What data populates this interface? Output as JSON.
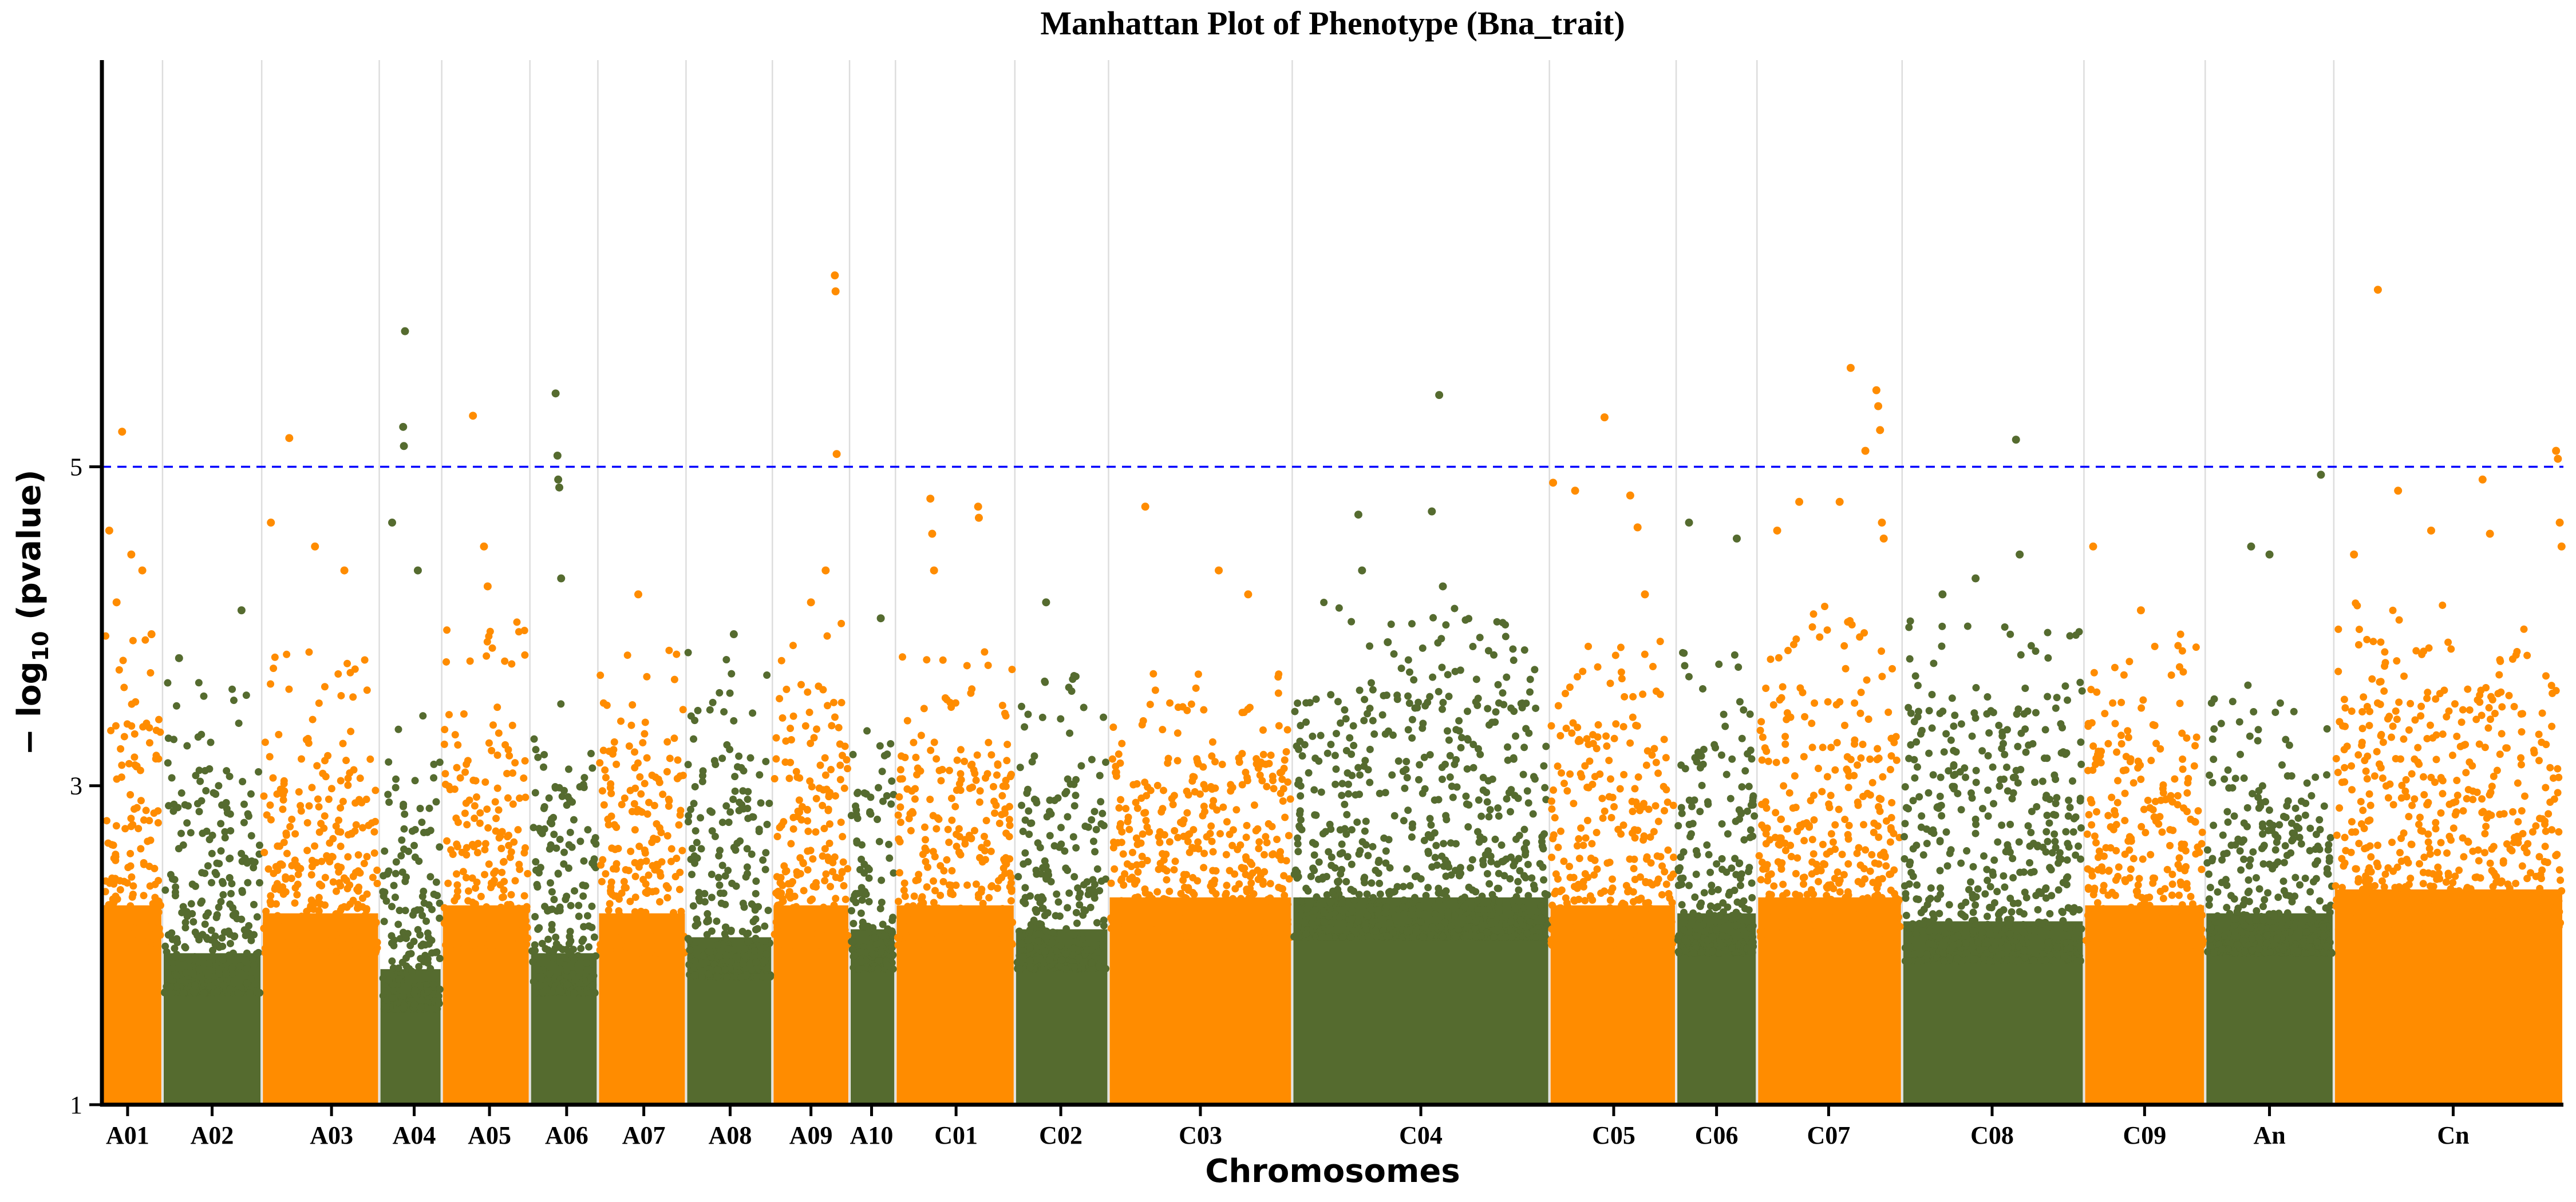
{
  "chart_data": {
    "type": "scatter",
    "subtype": "manhattan",
    "title": "Manhattan Plot of Phenotype (Bna_trait)",
    "xlabel": "Chromosomes",
    "ylabel": "− log",
    "ylabel_sub": "10",
    "ylabel_tail": " (pvalue)",
    "ylim": [
      1,
      7.55
    ],
    "yticks": [
      1,
      3,
      5
    ],
    "ytick_labels": [
      "1",
      "3",
      "5"
    ],
    "threshold": 5,
    "colors": {
      "orange": "#FF8C00",
      "green": "#556B2F",
      "threshold": "#0000FF",
      "grid": "#DDDDDD",
      "axis": "#000000"
    },
    "chromosomes": [
      {
        "name": "A01",
        "start": 0.0,
        "end": 1.65,
        "color": "orange",
        "label_at": 0.7
      },
      {
        "name": "A02",
        "start": 1.65,
        "end": 4.35,
        "color": "green",
        "label_at": 3.0
      },
      {
        "name": "A03",
        "start": 4.35,
        "end": 7.55,
        "color": "orange",
        "label_at": 6.25
      },
      {
        "name": "A04",
        "start": 7.55,
        "end": 9.25,
        "color": "green",
        "label_at": 8.5
      },
      {
        "name": "A05",
        "start": 9.25,
        "end": 11.65,
        "color": "orange",
        "label_at": 10.55
      },
      {
        "name": "A06",
        "start": 11.65,
        "end": 13.5,
        "color": "green",
        "label_at": 12.65
      },
      {
        "name": "A07",
        "start": 13.5,
        "end": 15.9,
        "color": "orange",
        "label_at": 14.75
      },
      {
        "name": "A08",
        "start": 15.9,
        "end": 18.25,
        "color": "green",
        "label_at": 17.1
      },
      {
        "name": "A09",
        "start": 18.25,
        "end": 20.35,
        "color": "orange",
        "label_at": 19.3
      },
      {
        "name": "A10",
        "start": 20.35,
        "end": 21.6,
        "color": "green",
        "label_at": 20.95
      },
      {
        "name": "C01",
        "start": 21.6,
        "end": 24.85,
        "color": "orange",
        "label_at": 23.25
      },
      {
        "name": "C02",
        "start": 24.85,
        "end": 27.4,
        "color": "green",
        "label_at": 26.1
      },
      {
        "name": "C03",
        "start": 27.4,
        "end": 32.4,
        "color": "orange",
        "label_at": 29.9
      },
      {
        "name": "C04",
        "start": 32.4,
        "end": 39.4,
        "color": "green",
        "label_at": 35.9
      },
      {
        "name": "C05",
        "start": 39.4,
        "end": 42.85,
        "color": "orange",
        "label_at": 41.15
      },
      {
        "name": "C06",
        "start": 42.85,
        "end": 45.05,
        "color": "green",
        "label_at": 43.95
      },
      {
        "name": "C07",
        "start": 45.05,
        "end": 49.0,
        "color": "orange",
        "label_at": 47.0
      },
      {
        "name": "C08",
        "start": 49.0,
        "end": 53.95,
        "color": "green",
        "label_at": 51.45
      },
      {
        "name": "C09",
        "start": 53.95,
        "end": 57.25,
        "color": "orange",
        "label_at": 55.6
      },
      {
        "name": "An",
        "start": 57.25,
        "end": 60.75,
        "color": "green",
        "label_at": 59.0
      },
      {
        "name": "Cn",
        "start": 60.75,
        "end": 67.0,
        "color": "orange",
        "label_at": 64.0
      }
    ],
    "xlim": [
      0,
      67.0
    ],
    "dense_band": [
      {
        "chr": "A01",
        "top": 2.25
      },
      {
        "chr": "A02",
        "top": 1.95
      },
      {
        "chr": "A03",
        "top": 2.2
      },
      {
        "chr": "A04",
        "top": 1.85
      },
      {
        "chr": "A05",
        "top": 2.25
      },
      {
        "chr": "A06",
        "top": 1.95
      },
      {
        "chr": "A07",
        "top": 2.2
      },
      {
        "chr": "A08",
        "top": 2.05
      },
      {
        "chr": "A09",
        "top": 2.25
      },
      {
        "chr": "A10",
        "top": 2.1
      },
      {
        "chr": "C01",
        "top": 2.25
      },
      {
        "chr": "C02",
        "top": 2.1
      },
      {
        "chr": "C03",
        "top": 2.3
      },
      {
        "chr": "C04",
        "top": 2.3
      },
      {
        "chr": "C05",
        "top": 2.25
      },
      {
        "chr": "C06",
        "top": 2.2
      },
      {
        "chr": "C07",
        "top": 2.3
      },
      {
        "chr": "C08",
        "top": 2.15
      },
      {
        "chr": "C09",
        "top": 2.25
      },
      {
        "chr": "An",
        "top": 2.2
      },
      {
        "chr": "Cn",
        "top": 2.35
      }
    ],
    "snp_clouds": [
      {
        "chr": "A01",
        "max": 3.4
      },
      {
        "chr": "A02",
        "max": 3.1
      },
      {
        "chr": "A03",
        "max": 3.3
      },
      {
        "chr": "A04",
        "max": 2.9
      },
      {
        "chr": "A05",
        "max": 3.5
      },
      {
        "chr": "A06",
        "max": 3.0
      },
      {
        "chr": "A07",
        "max": 3.3
      },
      {
        "chr": "A08",
        "max": 3.3
      },
      {
        "chr": "A09",
        "max": 3.5
      },
      {
        "chr": "A10",
        "max": 3.0
      },
      {
        "chr": "C01",
        "max": 3.3
      },
      {
        "chr": "C02",
        "max": 3.2
      },
      {
        "chr": "C03",
        "max": 3.2
      },
      {
        "chr": "C04",
        "max": 3.6
      },
      {
        "chr": "C05",
        "max": 3.4
      },
      {
        "chr": "C06",
        "max": 3.3
      },
      {
        "chr": "C07",
        "max": 3.6
      },
      {
        "chr": "C08",
        "max": 3.5
      },
      {
        "chr": "C09",
        "max": 3.4
      },
      {
        "chr": "An",
        "max": 3.1
      },
      {
        "chr": "Cn",
        "max": 3.6
      }
    ],
    "top_snps": [
      {
        "chr": "A01",
        "x": 0.2,
        "y": 4.6
      },
      {
        "chr": "A01",
        "x": 0.4,
        "y": 4.15
      },
      {
        "chr": "A01",
        "x": 0.55,
        "y": 5.22
      },
      {
        "chr": "A01",
        "x": 0.8,
        "y": 4.45
      },
      {
        "chr": "A01",
        "x": 1.1,
        "y": 4.35
      },
      {
        "chr": "A01",
        "x": 1.35,
        "y": 3.95
      },
      {
        "chr": "A02",
        "x": 2.1,
        "y": 3.8
      },
      {
        "chr": "A02",
        "x": 3.8,
        "y": 4.1
      },
      {
        "chr": "A03",
        "x": 4.6,
        "y": 4.65
      },
      {
        "chr": "A03",
        "x": 5.1,
        "y": 5.18
      },
      {
        "chr": "A03",
        "x": 5.8,
        "y": 4.5
      },
      {
        "chr": "A03",
        "x": 6.6,
        "y": 4.35
      },
      {
        "chr": "A04",
        "x": 7.9,
        "y": 4.65
      },
      {
        "chr": "A04",
        "x": 8.2,
        "y": 5.25
      },
      {
        "chr": "A04",
        "x": 8.22,
        "y": 5.13
      },
      {
        "chr": "A04",
        "x": 8.25,
        "y": 5.85
      },
      {
        "chr": "A04",
        "x": 8.6,
        "y": 4.35
      },
      {
        "chr": "A05",
        "x": 10.1,
        "y": 5.32
      },
      {
        "chr": "A05",
        "x": 10.4,
        "y": 4.5
      },
      {
        "chr": "A05",
        "x": 10.5,
        "y": 4.25
      },
      {
        "chr": "A06",
        "x": 12.35,
        "y": 5.46
      },
      {
        "chr": "A06",
        "x": 12.4,
        "y": 5.07
      },
      {
        "chr": "A06",
        "x": 12.42,
        "y": 4.92
      },
      {
        "chr": "A06",
        "x": 12.45,
        "y": 4.87
      },
      {
        "chr": "A06",
        "x": 12.5,
        "y": 4.3
      },
      {
        "chr": "A07",
        "x": 14.6,
        "y": 4.2
      },
      {
        "chr": "A08",
        "x": 17.2,
        "y": 3.95
      },
      {
        "chr": "A09",
        "x": 19.3,
        "y": 4.15
      },
      {
        "chr": "A09",
        "x": 19.7,
        "y": 4.35
      },
      {
        "chr": "A09",
        "x": 19.95,
        "y": 6.2
      },
      {
        "chr": "A09",
        "x": 19.97,
        "y": 6.1
      },
      {
        "chr": "A09",
        "x": 20.0,
        "y": 5.08
      },
      {
        "chr": "A10",
        "x": 21.2,
        "y": 4.05
      },
      {
        "chr": "C01",
        "x": 22.55,
        "y": 4.8
      },
      {
        "chr": "C01",
        "x": 22.6,
        "y": 4.58
      },
      {
        "chr": "C01",
        "x": 22.65,
        "y": 4.35
      },
      {
        "chr": "C01",
        "x": 23.85,
        "y": 4.75
      },
      {
        "chr": "C01",
        "x": 23.87,
        "y": 4.68
      },
      {
        "chr": "C02",
        "x": 25.7,
        "y": 4.15
      },
      {
        "chr": "C03",
        "x": 28.4,
        "y": 4.75
      },
      {
        "chr": "C03",
        "x": 30.4,
        "y": 4.35
      },
      {
        "chr": "C03",
        "x": 31.2,
        "y": 4.2
      },
      {
        "chr": "C04",
        "x": 34.2,
        "y": 4.7
      },
      {
        "chr": "C04",
        "x": 34.3,
        "y": 4.35
      },
      {
        "chr": "C04",
        "x": 35.0,
        "y": 3.9
      },
      {
        "chr": "C04",
        "x": 36.2,
        "y": 4.72
      },
      {
        "chr": "C04",
        "x": 36.4,
        "y": 5.45
      },
      {
        "chr": "C04",
        "x": 36.5,
        "y": 4.25
      },
      {
        "chr": "C05",
        "x": 39.5,
        "y": 4.9
      },
      {
        "chr": "C05",
        "x": 40.1,
        "y": 4.85
      },
      {
        "chr": "C05",
        "x": 40.9,
        "y": 5.31
      },
      {
        "chr": "C05",
        "x": 41.6,
        "y": 4.82
      },
      {
        "chr": "C05",
        "x": 41.8,
        "y": 4.62
      },
      {
        "chr": "C05",
        "x": 42.0,
        "y": 4.2
      },
      {
        "chr": "C06",
        "x": 43.2,
        "y": 4.65
      },
      {
        "chr": "C06",
        "x": 44.5,
        "y": 4.55
      },
      {
        "chr": "C07",
        "x": 45.6,
        "y": 4.6
      },
      {
        "chr": "C07",
        "x": 46.2,
        "y": 4.78
      },
      {
        "chr": "C07",
        "x": 47.3,
        "y": 4.78
      },
      {
        "chr": "C07",
        "x": 47.6,
        "y": 5.62
      },
      {
        "chr": "C07",
        "x": 48.0,
        "y": 5.1
      },
      {
        "chr": "C07",
        "x": 48.3,
        "y": 5.48
      },
      {
        "chr": "C07",
        "x": 48.35,
        "y": 5.38
      },
      {
        "chr": "C07",
        "x": 48.4,
        "y": 5.23
      },
      {
        "chr": "C07",
        "x": 48.45,
        "y": 4.65
      },
      {
        "chr": "C07",
        "x": 48.5,
        "y": 4.55
      },
      {
        "chr": "C08",
        "x": 50.1,
        "y": 4.2
      },
      {
        "chr": "C08",
        "x": 51.0,
        "y": 4.3
      },
      {
        "chr": "C08",
        "x": 52.1,
        "y": 5.17
      },
      {
        "chr": "C08",
        "x": 52.2,
        "y": 4.45
      },
      {
        "chr": "C09",
        "x": 54.2,
        "y": 4.5
      },
      {
        "chr": "C09",
        "x": 55.5,
        "y": 4.1
      },
      {
        "chr": "An",
        "x": 58.5,
        "y": 4.5
      },
      {
        "chr": "An",
        "x": 59.0,
        "y": 4.45
      },
      {
        "chr": "An",
        "x": 60.4,
        "y": 4.95
      },
      {
        "chr": "Cn",
        "x": 61.3,
        "y": 4.45
      },
      {
        "chr": "Cn",
        "x": 61.95,
        "y": 6.11
      },
      {
        "chr": "Cn",
        "x": 62.5,
        "y": 4.85
      },
      {
        "chr": "Cn",
        "x": 63.4,
        "y": 4.6
      },
      {
        "chr": "Cn",
        "x": 64.8,
        "y": 4.92
      },
      {
        "chr": "Cn",
        "x": 65.0,
        "y": 4.58
      },
      {
        "chr": "Cn",
        "x": 66.8,
        "y": 5.1
      },
      {
        "chr": "Cn",
        "x": 66.85,
        "y": 5.05
      },
      {
        "chr": "Cn",
        "x": 66.9,
        "y": 4.65
      },
      {
        "chr": "Cn",
        "x": 66.95,
        "y": 4.5
      }
    ]
  }
}
